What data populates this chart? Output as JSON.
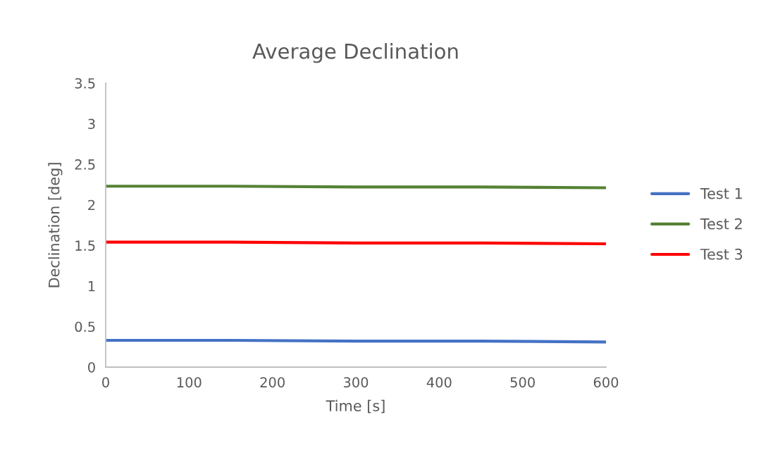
{
  "chart_data": {
    "type": "line",
    "title": "Average Declination",
    "xlabel": "Time [s]",
    "ylabel": "Declination [deg]",
    "x": [
      0,
      150,
      300,
      450,
      600
    ],
    "series": [
      {
        "name": "Test 1",
        "color": "#4472c4",
        "values": [
          0.33,
          0.33,
          0.32,
          0.32,
          0.31
        ]
      },
      {
        "name": "Test 2",
        "color": "#548235",
        "values": [
          2.23,
          2.23,
          2.22,
          2.22,
          2.21
        ]
      },
      {
        "name": "Test 3",
        "color": "#ff0000",
        "values": [
          1.54,
          1.54,
          1.53,
          1.53,
          1.52
        ]
      }
    ],
    "xlim": [
      0,
      600
    ],
    "xticks": [
      0,
      100,
      200,
      300,
      400,
      500,
      600
    ],
    "ylim": [
      0,
      3.5
    ],
    "yticks": [
      0,
      0.5,
      1,
      1.5,
      2,
      2.5,
      3,
      3.5
    ],
    "grid": false,
    "legend": "right",
    "marker": "none",
    "line_style": "solid"
  }
}
